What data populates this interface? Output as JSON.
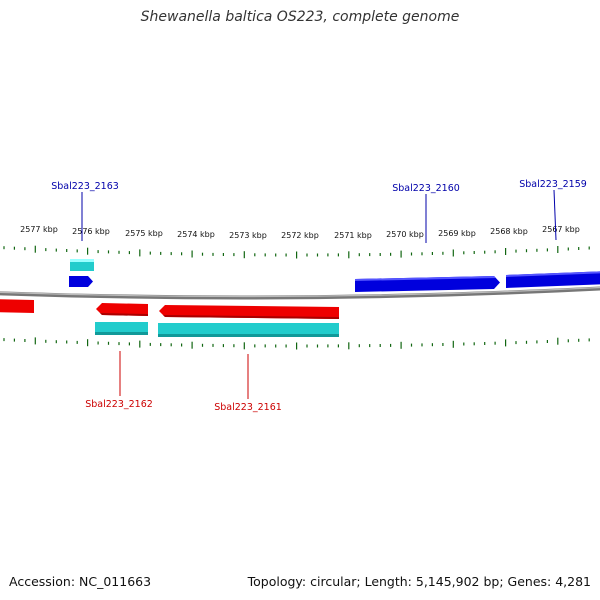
{
  "title": "Shewanella baltica OS223, complete genome",
  "footer": {
    "accession": "Accession: NC_011663",
    "summary": "Topology: circular; Length: 5,145,902 bp; Genes: 4,281"
  },
  "colors": {
    "forward_gene": "#0000dd",
    "reverse_gene": "#ee0000",
    "cds_cyan": "#22cccc",
    "backbone": "#888888",
    "tick": "#116611",
    "forward_label": "#0000aa",
    "reverse_label": "#cc0000"
  },
  "scale": {
    "tick_labels": [
      "2577 kbp",
      "2576 kbp",
      "2575 kbp",
      "2574 kbp",
      "2573 kbp",
      "2572 kbp",
      "2571 kbp",
      "2570 kbp",
      "2569 kbp",
      "2568 kbp",
      "2567 kbp"
    ]
  },
  "genes": [
    {
      "name": "Sbal223_2163",
      "strand": "forward"
    },
    {
      "name": "Sbal223_2160",
      "strand": "forward"
    },
    {
      "name": "Sbal223_2159",
      "strand": "forward"
    },
    {
      "name": "Sbal223_2162",
      "strand": "reverse"
    },
    {
      "name": "Sbal223_2161",
      "strand": "reverse"
    }
  ]
}
